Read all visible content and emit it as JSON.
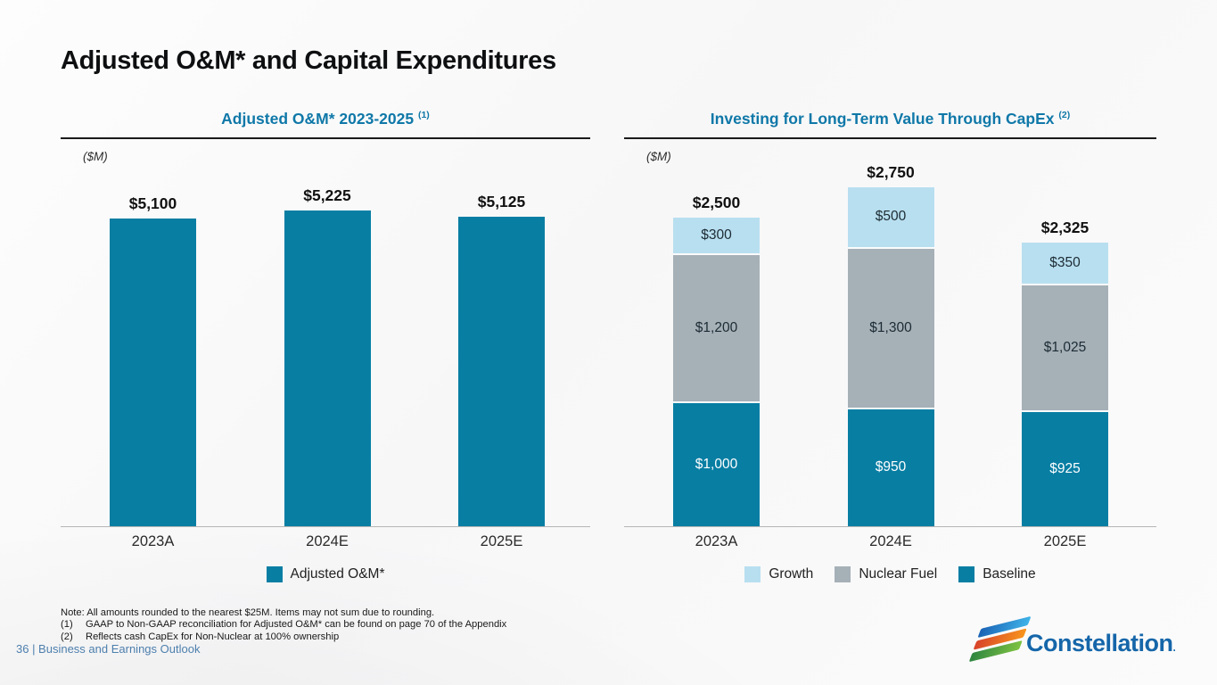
{
  "slide": {
    "title": "Adjusted O&M* and Capital Expenditures",
    "page_label": "36 | Business and Earnings Outlook",
    "logo_text": "Constellation",
    "logo_dot": ".",
    "footnotes": [
      {
        "marker": "",
        "text": "Note: All amounts rounded to the nearest $25M. Items may not sum due to rounding."
      },
      {
        "marker": "(1)",
        "text": "GAAP to Non-GAAP reconciliation for Adjusted O&M* can be found on page 70 of the Appendix"
      },
      {
        "marker": "(2)",
        "text": "Reflects cash CapEx for Non-Nuclear at 100% ownership"
      }
    ]
  },
  "colors": {
    "baseline_teal": "#087ea3",
    "nuclear_gray": "#a6b0b7",
    "growth_light_blue": "#b8dff0",
    "panel_title_blue": "#0f78a8",
    "footer_blue": "#4d7fad"
  },
  "chart_data": [
    {
      "type": "bar",
      "title": "Adjusted O&M* 2023-2025",
      "title_superscript": "(1)",
      "units_label": "($M)",
      "categories": [
        "2023A",
        "2024E",
        "2025E"
      ],
      "values": [
        5100,
        5225,
        5125
      ],
      "value_labels": [
        "$5,100",
        "$5,225",
        "$5,125"
      ],
      "bar_color": "#087ea3",
      "ylim": [
        0,
        5500
      ],
      "grid": false,
      "legend_position": "bottom",
      "legend": [
        {
          "label": "Adjusted O&M*",
          "color": "#087ea3"
        }
      ]
    },
    {
      "type": "stacked-bar",
      "title": "Investing for Long-Term Value Through CapEx",
      "title_superscript": "(2)",
      "units_label": "($M)",
      "categories": [
        "2023A",
        "2024E",
        "2025E"
      ],
      "series": [
        {
          "name": "Baseline",
          "color": "#087ea3",
          "values": [
            1000,
            950,
            925
          ],
          "labels": [
            "$1,000",
            "$950",
            "$925"
          ],
          "label_color": "#ffffff"
        },
        {
          "name": "Nuclear Fuel",
          "color": "#a6b0b7",
          "values": [
            1200,
            1300,
            1025
          ],
          "labels": [
            "$1,200",
            "$1,300",
            "$1,025"
          ],
          "label_color": "#1c2b33"
        },
        {
          "name": "Growth",
          "color": "#b8dff0",
          "values": [
            300,
            500,
            350
          ],
          "labels": [
            "$300",
            "$500",
            "$350"
          ],
          "label_color": "#1c2b33"
        }
      ],
      "totals": [
        2500,
        2750,
        2325
      ],
      "total_labels": [
        "$2,500",
        "$2,750",
        "$2,325"
      ],
      "ylim": [
        0,
        2900
      ],
      "grid": false,
      "legend_position": "bottom",
      "legend": [
        {
          "label": "Growth",
          "color": "#b8dff0"
        },
        {
          "label": "Nuclear Fuel",
          "color": "#a6b0b7"
        },
        {
          "label": "Baseline",
          "color": "#087ea3"
        }
      ]
    }
  ]
}
